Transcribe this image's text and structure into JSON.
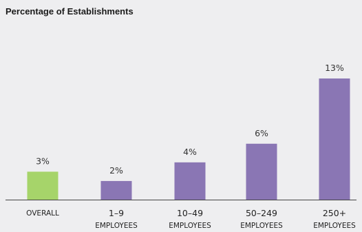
{
  "chart_data": {
    "type": "bar",
    "title": "Percentage of Establishments",
    "xlabel": "",
    "ylabel": "",
    "categories": [
      {
        "line1": "OVERALL",
        "line2": ""
      },
      {
        "line1": "1–9",
        "line2": "EMPLOYEES"
      },
      {
        "line1": "10–49",
        "line2": "EMPLOYEES"
      },
      {
        "line1": "50–249",
        "line2": "EMPLOYEES"
      },
      {
        "line1": "250+",
        "line2": "EMPLOYEES"
      }
    ],
    "values": [
      3,
      2,
      4,
      6,
      13
    ],
    "value_labels": [
      "3%",
      "2%",
      "4%",
      "6%",
      "13%"
    ],
    "ylim": [
      0,
      13
    ],
    "grid": false,
    "colors": [
      "#a6d46a",
      "#8a76b4",
      "#8a76b4",
      "#8a76b4",
      "#8a76b4"
    ],
    "baseline_color": "#444444"
  }
}
